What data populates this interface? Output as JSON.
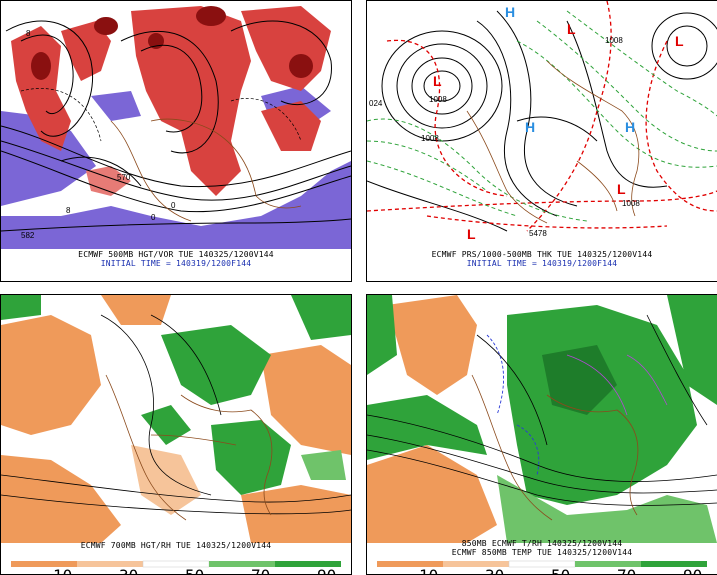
{
  "panels": [
    {
      "id": "p1",
      "caption_line1": "ECMWF 500MB HGT/VOR TUE 140325/1200V144",
      "caption_line2": "INITIAL TIME = 140319/1200F144",
      "contour_labels": [
        "570",
        "582",
        "8",
        "0",
        "8",
        "0"
      ]
    },
    {
      "id": "p2",
      "caption_line1": "ECMWF PRS/1000-500MB THK TUE 140325/1200V144",
      "caption_line2": "INITIAL TIME = 140319/1200F144",
      "contour_labels": [
        "1008",
        "1008",
        "1008",
        "1008",
        "024",
        "5478"
      ]
    },
    {
      "id": "p3",
      "caption_line1": "ECMWF 700MB HGT/RH TUE 140325/1200V144",
      "colorbar_labels": [
        "10",
        "30",
        "50",
        "70",
        "90"
      ]
    },
    {
      "id": "p4",
      "caption_line1": "850MB ECMWF T/RH 140325/1200V144",
      "caption_line2": "ECMWF 850MB TEMP TUE 140325/1200V144",
      "colorbar_labels": [
        "10",
        "30",
        "50",
        "70",
        "90"
      ]
    }
  ],
  "colors": {
    "vorticity_red": "#d8423f",
    "vorticity_dark": "#8a1010",
    "vorticity_purple": "#7b66d6",
    "low_red": "#e00000",
    "high_blue": "#2a8ee0",
    "rh_orange": "#ef9a5a",
    "rh_green": "#2fa33a",
    "coast_brown": "#8b4a1c"
  },
  "markers": {
    "low": "L",
    "high": "H"
  }
}
